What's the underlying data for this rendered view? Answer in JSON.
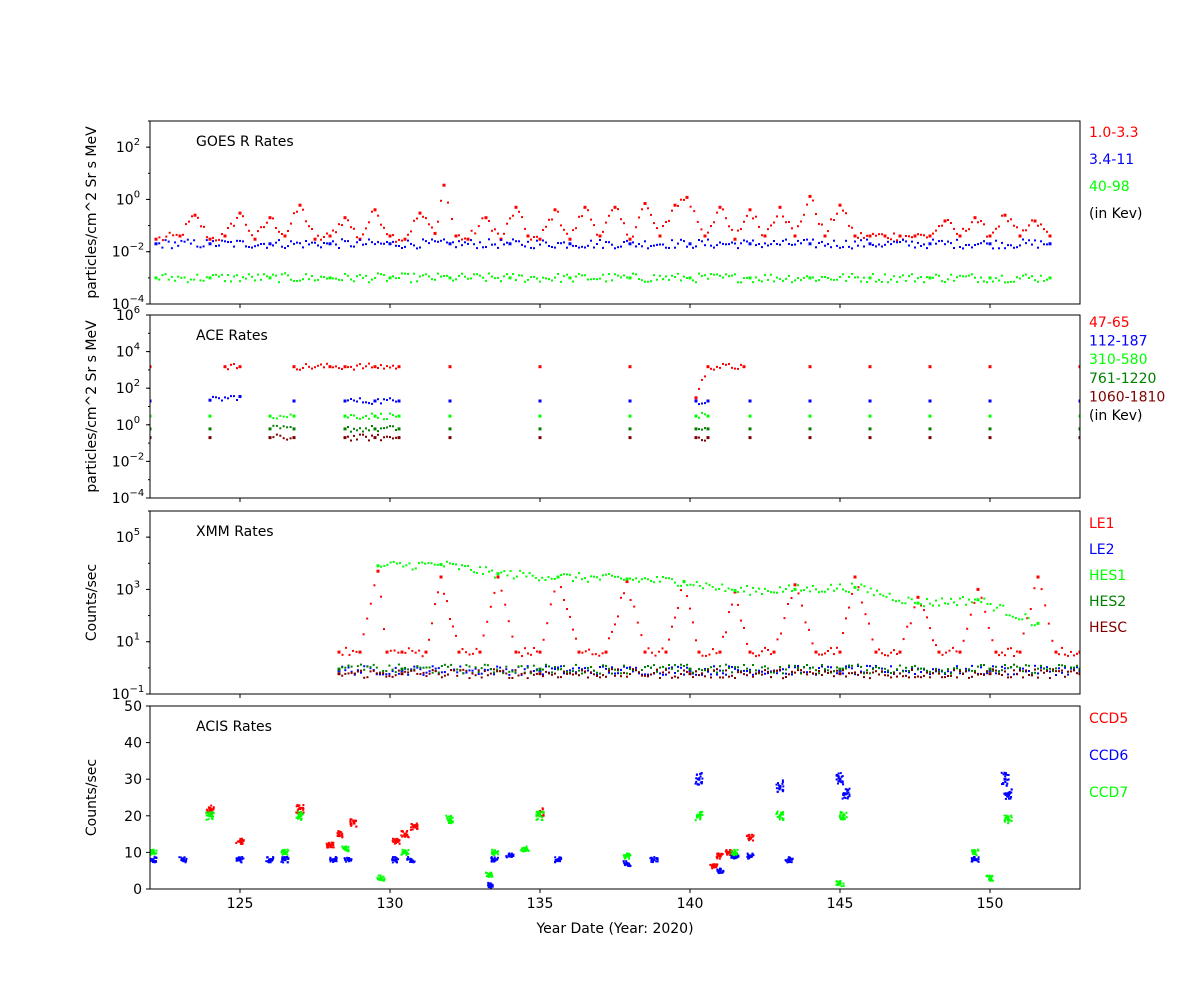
{
  "chart_data": [
    {
      "type": "scatter",
      "panel": "goes",
      "title": "GOES R Rates",
      "ylabel": "particles/cm^2 Sr s MeV",
      "yscale": "log",
      "ylim": [
        0.0001,
        1000
      ],
      "xlim": [
        122,
        153
      ],
      "yticks": [
        {
          "value": 0.0001,
          "base": "10",
          "exp": "−4"
        },
        {
          "value": 0.01,
          "base": "10",
          "exp": "−2"
        },
        {
          "value": 1,
          "base": "10",
          "exp": "0"
        },
        {
          "value": 100,
          "base": "10",
          "exp": "2"
        }
      ],
      "legend_placement": "right",
      "legend": [
        {
          "label": "1.0-3.3",
          "color": "#ff0000"
        },
        {
          "label": "3.4-11",
          "color": "#0000ff"
        },
        {
          "label": "40-98",
          "color": "#00ff00"
        },
        {
          "label": "(in Kev)",
          "color": "#000000"
        }
      ],
      "series": [
        {
          "name": "1.0-3.3",
          "color": "#ff0000",
          "x": [
            122.2,
            123,
            123.5,
            124,
            124.5,
            125,
            125.5,
            126,
            126.5,
            127,
            127.5,
            128,
            128.5,
            129,
            129.5,
            130,
            130.5,
            131,
            131.5,
            131.8,
            132.2,
            132.6,
            133.2,
            133.7,
            134.2,
            134.6,
            135,
            135.5,
            136,
            136.5,
            137,
            137.5,
            138,
            138.5,
            139,
            139.5,
            139.9,
            140.5,
            141,
            141.5,
            142,
            142.5,
            143,
            143.5,
            144,
            144.5,
            145,
            145.5,
            146,
            146.5,
            147,
            147.5,
            148,
            148.5,
            149,
            149.5,
            150,
            150.5,
            151,
            151.5,
            152
          ],
          "y": [
            0.03,
            0.04,
            0.25,
            0.03,
            0.04,
            0.3,
            0.03,
            0.2,
            0.04,
            0.6,
            0.03,
            0.04,
            0.2,
            0.03,
            0.4,
            0.04,
            0.03,
            0.3,
            0.05,
            3.5,
            0.04,
            0.03,
            0.2,
            0.03,
            0.5,
            0.04,
            0.03,
            0.4,
            0.03,
            0.5,
            0.04,
            0.5,
            0.03,
            0.7,
            0.04,
            0.6,
            1.2,
            0.04,
            0.5,
            0.03,
            0.4,
            0.04,
            0.5,
            0.04,
            1.3,
            0.04,
            0.6,
            0.04,
            0.04,
            0.04,
            0.04,
            0.04,
            0.04,
            0.15,
            0.04,
            0.2,
            0.04,
            0.25,
            0.04,
            0.15,
            0.04
          ]
        },
        {
          "name": "3.4-11",
          "color": "#0000ff",
          "x": [
            122.2,
            124,
            126,
            128,
            130,
            132,
            134,
            136,
            138,
            140,
            142,
            144,
            146,
            148,
            150,
            152
          ],
          "y": [
            0.02,
            0.02,
            0.02,
            0.02,
            0.02,
            0.02,
            0.02,
            0.02,
            0.02,
            0.02,
            0.02,
            0.02,
            0.02,
            0.02,
            0.02,
            0.02
          ]
        },
        {
          "name": "40-98",
          "color": "#00ff00",
          "x": [
            122.2,
            124,
            126,
            128,
            130,
            132,
            134,
            136,
            138,
            140,
            142,
            144,
            146,
            148,
            150,
            152
          ],
          "y": [
            0.001,
            0.001,
            0.001,
            0.001,
            0.001,
            0.001,
            0.001,
            0.001,
            0.001,
            0.001,
            0.001,
            0.001,
            0.001,
            0.001,
            0.001,
            0.001
          ]
        }
      ]
    },
    {
      "type": "scatter",
      "panel": "ace",
      "title": "ACE Rates",
      "ylabel": "particles/cm^2 Sr s MeV",
      "yscale": "log",
      "ylim": [
        0.0001,
        1000000
      ],
      "xlim": [
        122,
        153
      ],
      "yticks": [
        {
          "value": 0.0001,
          "base": "10",
          "exp": "−4"
        },
        {
          "value": 0.01,
          "base": "10",
          "exp": "−2"
        },
        {
          "value": 1,
          "base": "10",
          "exp": "0"
        },
        {
          "value": 100,
          "base": "10",
          "exp": "2"
        },
        {
          "value": 10000,
          "base": "10",
          "exp": "4"
        },
        {
          "value": 1000000,
          "base": "10",
          "exp": "6"
        }
      ],
      "legend_placement": "right",
      "legend": [
        {
          "label": "47-65",
          "color": "#ff0000"
        },
        {
          "label": "112-187",
          "color": "#0000ff"
        },
        {
          "label": "310-580",
          "color": "#00ff00"
        },
        {
          "label": "761-1220",
          "color": "#008000"
        },
        {
          "label": "1060-1810",
          "color": "#800000"
        },
        {
          "label": "(in Kev)",
          "color": "#000000"
        }
      ],
      "series": [
        {
          "name": "47-65",
          "color": "#ff0000",
          "x": [
            122,
            124.5,
            125,
            126.8,
            128,
            128.5,
            129.5,
            130.3,
            132,
            135,
            138,
            140.2,
            140.6,
            141.8,
            144,
            146,
            148,
            150,
            153
          ],
          "y": [
            1500,
            1500,
            1500,
            1500,
            1500,
            1500,
            1500,
            1500,
            1500,
            1500,
            1500,
            30,
            1500,
            1500,
            1500,
            1500,
            1500,
            1500,
            1500
          ]
        },
        {
          "name": "112-187",
          "color": "#0000ff",
          "x": [
            122,
            124,
            125,
            126.8,
            128.5,
            129.5,
            130.3,
            132,
            135,
            138,
            140.2,
            140.6,
            142,
            144,
            146,
            148,
            150,
            153
          ],
          "y": [
            20,
            22,
            35,
            20,
            20,
            20,
            20,
            20,
            20,
            20,
            20,
            20,
            20,
            20,
            20,
            20,
            20,
            20
          ]
        },
        {
          "name": "310-580",
          "color": "#00ff00",
          "x": [
            122,
            124,
            126,
            126.8,
            128.5,
            129.5,
            130.3,
            132,
            135,
            138,
            140.2,
            140.6,
            142,
            144,
            146,
            148,
            150,
            153
          ],
          "y": [
            3,
            3,
            3,
            3,
            3,
            3,
            3,
            3,
            3,
            3,
            3,
            3,
            3,
            3,
            3,
            3,
            3,
            3
          ]
        },
        {
          "name": "761-1220",
          "color": "#008000",
          "x": [
            122,
            124,
            126,
            126.8,
            128.5,
            129.5,
            130.3,
            132,
            135,
            138,
            140.2,
            140.6,
            142,
            144,
            146,
            148,
            150,
            153
          ],
          "y": [
            0.6,
            0.6,
            0.6,
            0.6,
            0.6,
            0.6,
            0.6,
            0.6,
            0.6,
            0.6,
            0.6,
            0.6,
            0.6,
            0.6,
            0.6,
            0.6,
            0.6,
            0.6
          ]
        },
        {
          "name": "1060-1810",
          "color": "#800000",
          "x": [
            122,
            124,
            126,
            126.8,
            128.5,
            129.5,
            130.3,
            132,
            135,
            138,
            140.2,
            140.6,
            142,
            144,
            146,
            148,
            150,
            153
          ],
          "y": [
            0.2,
            0.2,
            0.2,
            0.2,
            0.2,
            0.2,
            0.2,
            0.2,
            0.2,
            0.2,
            0.2,
            0.2,
            0.2,
            0.2,
            0.2,
            0.2,
            0.2,
            0.2
          ]
        }
      ]
    },
    {
      "type": "scatter",
      "panel": "xmm",
      "title": "XMM Rates",
      "ylabel": "Counts/sec",
      "yscale": "log",
      "ylim": [
        0.1,
        1000000
      ],
      "xlim": [
        122,
        153
      ],
      "yticks": [
        {
          "value": 0.1,
          "base": "10",
          "exp": "−1"
        },
        {
          "value": 10,
          "base": "10",
          "exp": "1"
        },
        {
          "value": 1000,
          "base": "10",
          "exp": "3"
        },
        {
          "value": 100000,
          "base": "10",
          "exp": "5"
        }
      ],
      "legend_placement": "right",
      "legend": [
        {
          "label": "LE1",
          "color": "#ff0000"
        },
        {
          "label": "LE2",
          "color": "#0000ff"
        },
        {
          "label": "HES1",
          "color": "#00ff00"
        },
        {
          "label": "HES2",
          "color": "#008000"
        },
        {
          "label": "HESC",
          "color": "#800000"
        }
      ],
      "series": [
        {
          "name": "LE1",
          "color": "#ff0000",
          "x": [
            128.3,
            129,
            129.6,
            129.9,
            130.4,
            131.2,
            131.7,
            132.3,
            133,
            133.6,
            134.2,
            135,
            135.6,
            136.3,
            137.2,
            137.9,
            138.5,
            139.2,
            139.8,
            140.3,
            141,
            141.5,
            142,
            142.8,
            143.5,
            144.2,
            145,
            145.5,
            146.2,
            147,
            147.6,
            148.3,
            149,
            149.6,
            150.2,
            151,
            151.6,
            152.2,
            153
          ],
          "y": [
            4,
            4,
            5000,
            4,
            4,
            4,
            3000,
            4,
            4,
            3000,
            4,
            4,
            3000,
            4,
            4,
            2000,
            4,
            4,
            2000,
            4,
            4,
            800,
            4,
            4,
            1500,
            4,
            4,
            3000,
            4,
            4,
            500,
            4,
            4,
            1000,
            4,
            4,
            3000,
            4,
            4
          ]
        },
        {
          "name": "LE2",
          "color": "#0000ff",
          "x": [
            128.3,
            130.4,
            135,
            140,
            145,
            150,
            153
          ],
          "y": [
            0.8,
            0.8,
            0.8,
            0.8,
            0.8,
            0.8,
            0.8
          ]
        },
        {
          "name": "HES1",
          "color": "#00ff00",
          "x": [
            129.6,
            131.7,
            133.6,
            135.6,
            137.9,
            139.8,
            141.5,
            143.5,
            145.5,
            147.6,
            149.6,
            151.6
          ],
          "y": [
            8000,
            9000,
            4000,
            3000,
            2500,
            2000,
            900,
            1000,
            1200,
            300,
            400,
            50
          ]
        },
        {
          "name": "HES2",
          "color": "#008000",
          "x": [
            128.3,
            130.4,
            135,
            140,
            145,
            150,
            153
          ],
          "y": [
            0.9,
            0.9,
            0.9,
            0.9,
            0.9,
            0.9,
            0.9
          ]
        },
        {
          "name": "HESC",
          "color": "#800000",
          "x": [
            128.3,
            130.4,
            135,
            140,
            145,
            150,
            153
          ],
          "y": [
            0.6,
            0.6,
            0.6,
            0.6,
            0.6,
            0.6,
            0.6
          ]
        }
      ]
    },
    {
      "type": "scatter",
      "panel": "acis",
      "title": "ACIS Rates",
      "ylabel": "Counts/sec",
      "xlabel": "Year Date (Year: 2020)",
      "yscale": "linear",
      "ylim": [
        0,
        50
      ],
      "xlim": [
        122,
        153
      ],
      "yticks": [
        0,
        10,
        20,
        30,
        40,
        50
      ],
      "xticks": [
        125,
        130,
        135,
        140,
        145,
        150
      ],
      "legend_placement": "right",
      "legend": [
        {
          "label": "CCD5",
          "color": "#ff0000"
        },
        {
          "label": "CCD6",
          "color": "#0000ff"
        },
        {
          "label": "CCD7",
          "color": "#00ff00"
        }
      ],
      "series": [
        {
          "name": "CCD5",
          "color": "#ff0000",
          "x": [
            124,
            125,
            127,
            128,
            128.3,
            128.8,
            130.2,
            130.5,
            130.8,
            135,
            140.8,
            141,
            141.3,
            142
          ],
          "y": [
            22,
            13,
            22,
            12,
            15,
            18,
            13,
            15,
            17,
            21,
            6,
            9,
            10,
            14
          ]
        },
        {
          "name": "CCD6",
          "color": "#0000ff",
          "x": [
            122.1,
            123.1,
            125,
            126,
            126.5,
            128.1,
            128.6,
            130.2,
            130.7,
            133.3,
            133.5,
            134,
            135.6,
            137.9,
            138.8,
            140.3,
            141,
            141.5,
            142,
            143,
            143.3,
            145,
            145.2,
            149.5,
            150.5,
            150.6
          ],
          "y": [
            8,
            8,
            8,
            8,
            8,
            8,
            8,
            8,
            8,
            1,
            8,
            9,
            8,
            7,
            8,
            30,
            5,
            9,
            9,
            28,
            8,
            30,
            26,
            8,
            30,
            26
          ]
        },
        {
          "name": "CCD7",
          "color": "#00ff00",
          "x": [
            122.1,
            124,
            126.5,
            127,
            128.5,
            129.7,
            130.5,
            132,
            133.3,
            133.5,
            134.5,
            135,
            137.9,
            140.3,
            141.5,
            143,
            145,
            145.1,
            149.5,
            150,
            150.6
          ],
          "y": [
            10,
            20,
            10,
            20,
            11,
            3,
            10,
            19,
            4,
            10,
            11,
            20,
            9,
            20,
            10,
            20,
            1.5,
            20,
            10,
            3,
            19
          ]
        }
      ]
    }
  ]
}
